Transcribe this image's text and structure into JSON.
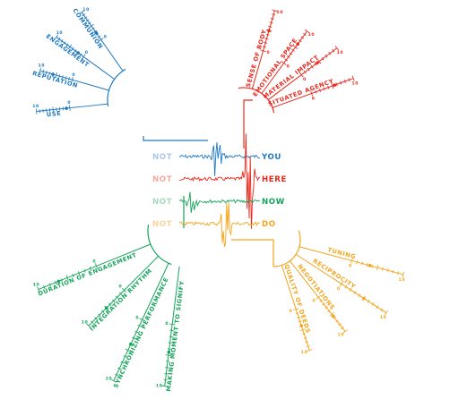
{
  "colors": {
    "blue": "#1f78c1",
    "red": "#e8281d",
    "green": "#14a35a",
    "orange": "#f4a41c",
    "blue_faint": "#a9c8e6",
    "red_faint": "#f2aaa2",
    "green_faint": "#a6dcbd",
    "orange_faint": "#f8d59a"
  },
  "rows": [
    {
      "not": "NOT",
      "word": "YOU",
      "color": "blue"
    },
    {
      "not": "NOT",
      "word": "HERE",
      "color": "red"
    },
    {
      "not": "NOT",
      "word": "NOW",
      "color": "green"
    },
    {
      "not": "NOT",
      "word": "DO",
      "color": "orange"
    }
  ],
  "groups": {
    "blue": {
      "axes": [
        {
          "label": "COMMUNION",
          "ticks": [
            "0",
            "10"
          ],
          "value": 0.25
        },
        {
          "label": "ENGAGEMENT",
          "ticks": [
            "0",
            "10"
          ],
          "value": 0.2
        },
        {
          "label": "REPUTATION",
          "ticks": [
            "0",
            "10"
          ],
          "value": 0.6
        },
        {
          "label": "USE",
          "ticks": [
            "0",
            "10"
          ],
          "value": 0.1
        }
      ]
    },
    "red": {
      "axes": [
        {
          "label": "SENSE OF BODY",
          "ticks": [
            "0",
            "10"
          ],
          "value": 0.5
        },
        {
          "label": "EMOTIONAL SPACE",
          "ticks": [
            "0",
            "10"
          ],
          "value": 0.6
        },
        {
          "label": "MATERIAL IMPACT",
          "ticks": [
            "0",
            "10"
          ],
          "value": 0.45
        },
        {
          "label": "SITUATED AGENCY",
          "ticks": [
            "0",
            "10"
          ],
          "value": 0.55
        }
      ]
    },
    "green": {
      "axes": [
        {
          "label": "DURATION OF ENGAGEMENT",
          "ticks": [
            "0",
            "10"
          ],
          "value": 0.65
        },
        {
          "label": "INTEGRATION RHYTHM",
          "ticks": [
            "0",
            "10"
          ],
          "value": 0.5
        },
        {
          "label": "SYNCHRONIZING PERFORMANCE",
          "ticks": [
            "0",
            "10"
          ],
          "value": 0.4
        },
        {
          "label": "MAKING MOMENT TO SIGNIFY",
          "ticks": [
            "0",
            "10"
          ],
          "value": 0.45
        }
      ]
    },
    "orange": {
      "axes": [
        {
          "label": "TUNING",
          "ticks": [
            "0",
            "10"
          ],
          "value": 0.35
        },
        {
          "label": "RECIPROCITY",
          "ticks": [
            "0",
            "10"
          ],
          "value": 0.5
        },
        {
          "label": "NEGOTIATIONS",
          "ticks": [
            "0",
            "10"
          ],
          "value": 0.55
        },
        {
          "label": "QUALITY OF DEEDS",
          "ticks": [
            "0",
            "10"
          ],
          "value": 0.4
        }
      ]
    }
  }
}
